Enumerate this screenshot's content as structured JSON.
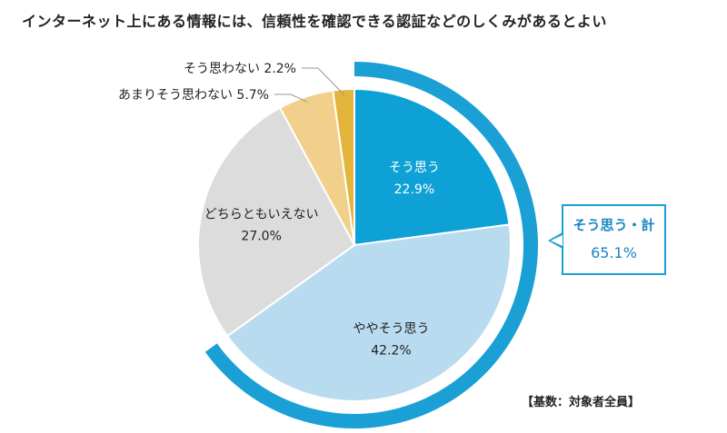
{
  "chart_data": {
    "type": "pie",
    "title": "インターネット上にある情報には、信頼性を確認できる認証などのしくみがあるとよい",
    "slices": [
      {
        "label": "そう思う",
        "value": 22.9,
        "value_text": "22.9%",
        "color": "#0ea1d6"
      },
      {
        "label": "ややそう思う",
        "value": 42.2,
        "value_text": "42.2%",
        "color": "#b8dbef"
      },
      {
        "label": "どちらともいえない",
        "value": 27.0,
        "value_text": "27.0%",
        "color": "#dcdcdc"
      },
      {
        "label": "あまりそう思わない",
        "value": 5.7,
        "value_text": "5.7%",
        "color": "#f0d08a"
      },
      {
        "label": "そう思わない",
        "value": 2.2,
        "value_text": "2.2%",
        "color": "#e3b53a"
      }
    ],
    "highlight": {
      "label": "そう思う・計",
      "value": 65.1,
      "value_text": "65.1%",
      "color": "#1aa0d4"
    },
    "note": "【基数：対象者全員】"
  }
}
